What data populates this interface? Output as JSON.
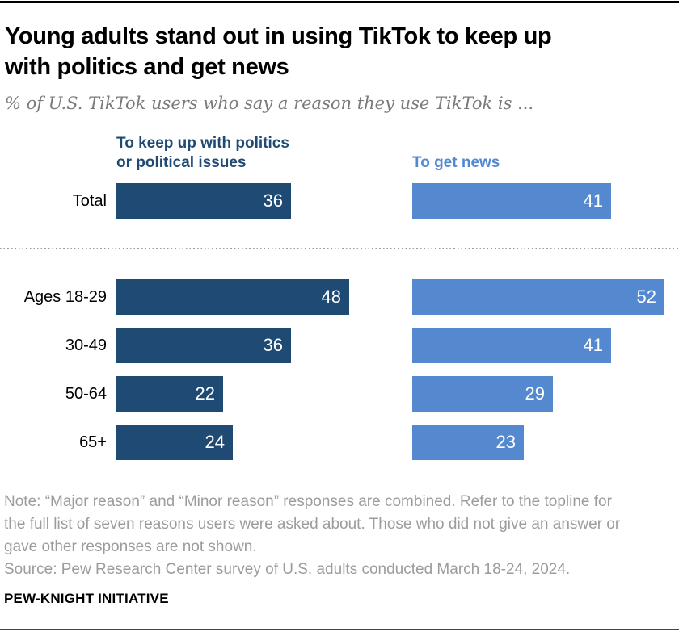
{
  "header": {
    "title_lines": [
      "Young adults stand out in using TikTok to keep up",
      "with politics and get news"
    ],
    "subtitle": "% of U.S. TikTok users who say a reason they use TikTok is ..."
  },
  "legend": {
    "politics_line1": "To keep up with politics",
    "politics_line2": "or political issues",
    "news": "To get news"
  },
  "chart_data": {
    "type": "bar",
    "orientation": "horizontal",
    "categories": [
      "Total",
      "Ages 18-29",
      "30-49",
      "50-64",
      "65+"
    ],
    "series": [
      {
        "name": "To keep up with politics or political issues",
        "color": "#1f4a74",
        "values": [
          36,
          48,
          36,
          22,
          24
        ]
      },
      {
        "name": "To get news",
        "color": "#5489d0",
        "values": [
          41,
          52,
          41,
          29,
          23
        ]
      }
    ],
    "xlim": [
      0,
      55
    ],
    "value_label_style": "white, inside right end of bar",
    "grid": false,
    "legend_position": "above columns",
    "group_divider": "dotted line between Total and age rows"
  },
  "footer": {
    "note_lines": [
      "Note: “Major reason” and “Minor reason” responses are combined. Refer to the topline for",
      "the full list of seven reasons users were asked about. Those who did not give an answer or",
      "gave other responses are not shown."
    ],
    "source": "Source: Pew Research Center survey of U.S. adults conducted March 18-24, 2024.",
    "brand": "PEW-KNIGHT INITIATIVE"
  },
  "colors": {
    "politics_bar": "#1f4a74",
    "news_bar": "#5489d0",
    "title_text": "#000000",
    "subtitle_text": "#7a7a7a",
    "note_text": "#9c9c9c",
    "top_rule": "#000000",
    "bottom_rule": "#454545"
  }
}
